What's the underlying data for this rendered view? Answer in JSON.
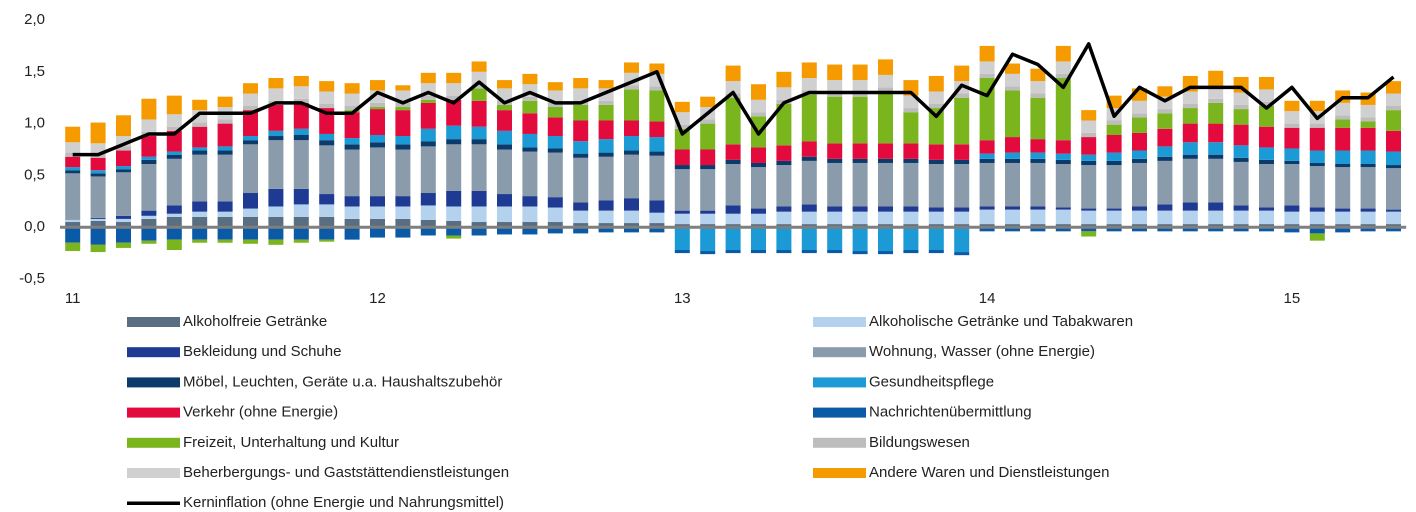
{
  "chart_data": {
    "type": "stacked_bar_line",
    "categories": [
      "11",
      null,
      null,
      null,
      null,
      null,
      null,
      null,
      null,
      null,
      null,
      null,
      "12",
      null,
      null,
      null,
      null,
      null,
      null,
      null,
      null,
      null,
      null,
      null,
      "13",
      null,
      null,
      null,
      null,
      null,
      null,
      null,
      null,
      null,
      null,
      null,
      "14",
      null,
      null,
      null,
      null,
      null,
      null,
      null,
      null,
      null,
      null,
      null,
      "15",
      null,
      null,
      null,
      null
    ],
    "ylim": [
      -0.5,
      2.0
    ],
    "yticks": [
      {
        "value": -0.5,
        "label": "-0,5"
      },
      {
        "value": 0,
        "label": "0,0"
      },
      {
        "value": 0.5,
        "label": "0,5"
      },
      {
        "value": 1.0,
        "label": "1,0"
      },
      {
        "value": 1.5,
        "label": "1,5"
      },
      {
        "value": 2.0,
        "label": "2,0"
      }
    ],
    "series": [
      {
        "name": "Alkoholfreie Getränke",
        "color": "#5a6e82",
        "values": [
          0.05,
          0.06,
          0.05,
          0.08,
          0.1,
          0.1,
          0.1,
          0.1,
          0.1,
          0.1,
          0.1,
          0.08,
          0.08,
          0.08,
          0.07,
          0.06,
          0.05,
          0.05,
          0.05,
          0.05,
          0.04,
          0.04,
          0.04,
          0.04,
          0.03,
          0.03,
          0.03,
          0.03,
          0.03,
          0.03,
          0.03,
          0.03,
          0.03,
          0.03,
          0.03,
          0.03,
          0.03,
          0.03,
          0.03,
          0.03,
          0.03,
          0.03,
          0.03,
          0.03,
          0.03,
          0.03,
          0.03,
          0.03,
          0.03,
          0.03,
          0.03,
          0.03,
          0.03
        ]
      },
      {
        "name": "Alkoholische Getränke und Tabakwaren",
        "color": "#b4d2ee",
        "values": [
          0.02,
          0.02,
          0.03,
          0.03,
          0.03,
          0.05,
          0.05,
          0.08,
          0.1,
          0.12,
          0.12,
          0.12,
          0.12,
          0.12,
          0.14,
          0.14,
          0.15,
          0.15,
          0.15,
          0.14,
          0.12,
          0.12,
          0.12,
          0.1,
          0.1,
          0.1,
          0.1,
          0.1,
          0.12,
          0.12,
          0.12,
          0.12,
          0.12,
          0.12,
          0.12,
          0.12,
          0.14,
          0.14,
          0.14,
          0.14,
          0.13,
          0.13,
          0.13,
          0.13,
          0.13,
          0.13,
          0.13,
          0.13,
          0.12,
          0.12,
          0.12,
          0.12,
          0.12
        ]
      },
      {
        "name": "Bekleidung und Schuhe",
        "color": "#1f3a93",
        "values": [
          0.0,
          0.01,
          0.03,
          0.05,
          0.08,
          0.1,
          0.1,
          0.15,
          0.17,
          0.15,
          0.1,
          0.1,
          0.1,
          0.1,
          0.12,
          0.15,
          0.15,
          0.12,
          0.1,
          0.1,
          0.08,
          0.1,
          0.12,
          0.12,
          0.03,
          0.03,
          0.08,
          0.05,
          0.05,
          0.07,
          0.05,
          0.05,
          0.05,
          0.05,
          0.04,
          0.04,
          0.03,
          0.03,
          0.03,
          0.02,
          0.02,
          0.02,
          0.04,
          0.06,
          0.08,
          0.08,
          0.05,
          0.03,
          0.06,
          0.04,
          0.03,
          0.03,
          0.02
        ]
      },
      {
        "name": "Wohnung, Wasser (ohne Energie)",
        "color": "#8a9bab",
        "values": [
          0.45,
          0.4,
          0.42,
          0.45,
          0.45,
          0.45,
          0.45,
          0.47,
          0.47,
          0.47,
          0.47,
          0.45,
          0.47,
          0.45,
          0.45,
          0.45,
          0.45,
          0.43,
          0.43,
          0.43,
          0.43,
          0.42,
          0.42,
          0.43,
          0.4,
          0.4,
          0.4,
          0.4,
          0.4,
          0.42,
          0.42,
          0.42,
          0.42,
          0.42,
          0.42,
          0.42,
          0.42,
          0.42,
          0.42,
          0.42,
          0.42,
          0.42,
          0.42,
          0.42,
          0.42,
          0.42,
          0.42,
          0.42,
          0.4,
          0.4,
          0.4,
          0.4,
          0.4
        ]
      },
      {
        "name": "Möbel, Leuchten, Geräte u.a. Haushaltszubehör",
        "color": "#0b3a6b",
        "values": [
          0.03,
          0.03,
          0.03,
          0.04,
          0.04,
          0.04,
          0.04,
          0.04,
          0.04,
          0.05,
          0.05,
          0.05,
          0.05,
          0.05,
          0.05,
          0.05,
          0.05,
          0.05,
          0.04,
          0.04,
          0.04,
          0.04,
          0.04,
          0.04,
          0.04,
          0.04,
          0.04,
          0.04,
          0.04,
          0.04,
          0.04,
          0.04,
          0.04,
          0.04,
          0.04,
          0.04,
          0.04,
          0.04,
          0.04,
          0.04,
          0.04,
          0.04,
          0.04,
          0.04,
          0.04,
          0.04,
          0.04,
          0.04,
          0.03,
          0.03,
          0.03,
          0.03,
          0.03
        ]
      },
      {
        "name": "Gesundheitspflege",
        "color": "#1b9ad6",
        "values": [
          0.03,
          0.03,
          0.03,
          0.03,
          0.03,
          0.03,
          0.04,
          0.04,
          0.05,
          0.06,
          0.06,
          0.06,
          0.07,
          0.08,
          0.12,
          0.13,
          0.12,
          0.13,
          0.13,
          0.12,
          0.12,
          0.13,
          0.14,
          0.14,
          -0.22,
          -0.23,
          -0.22,
          -0.22,
          -0.22,
          -0.22,
          -0.22,
          -0.23,
          -0.23,
          -0.22,
          -0.22,
          -0.24,
          0.05,
          0.06,
          0.06,
          0.06,
          0.06,
          0.08,
          0.08,
          0.1,
          0.12,
          0.12,
          0.12,
          0.12,
          0.12,
          0.12,
          0.13,
          0.13,
          0.13
        ]
      },
      {
        "name": "Verkehr (ohne Energie)",
        "color": "#e30b3d",
        "values": [
          0.1,
          0.12,
          0.15,
          0.2,
          0.2,
          0.2,
          0.22,
          0.25,
          0.25,
          0.25,
          0.25,
          0.25,
          0.25,
          0.25,
          0.25,
          0.25,
          0.25,
          0.2,
          0.2,
          0.18,
          0.2,
          0.18,
          0.15,
          0.15,
          0.15,
          0.15,
          0.15,
          0.15,
          0.15,
          0.15,
          0.15,
          0.15,
          0.15,
          0.15,
          0.15,
          0.15,
          0.13,
          0.15,
          0.13,
          0.13,
          0.17,
          0.17,
          0.17,
          0.17,
          0.18,
          0.18,
          0.2,
          0.2,
          0.2,
          0.22,
          0.22,
          0.22,
          0.2
        ]
      },
      {
        "name": "Nachrichtenübermittlung",
        "color": "#0b5aa8",
        "values": [
          -0.15,
          -0.17,
          -0.15,
          -0.13,
          -0.12,
          -0.12,
          -0.12,
          -0.12,
          -0.12,
          -0.12,
          -0.12,
          -0.12,
          -0.1,
          -0.1,
          -0.08,
          -0.08,
          -0.08,
          -0.07,
          -0.07,
          -0.06,
          -0.06,
          -0.05,
          -0.05,
          -0.05,
          -0.03,
          -0.03,
          -0.03,
          -0.03,
          -0.03,
          -0.03,
          -0.03,
          -0.03,
          -0.03,
          -0.03,
          -0.03,
          -0.03,
          -0.04,
          -0.04,
          -0.04,
          -0.04,
          -0.04,
          -0.04,
          -0.04,
          -0.04,
          -0.04,
          -0.04,
          -0.04,
          -0.04,
          -0.05,
          -0.06,
          -0.05,
          -0.04,
          -0.04
        ]
      },
      {
        "name": "Freizeit, Unterhaltung und Kultur",
        "color": "#7ab51d",
        "values": [
          -0.08,
          -0.07,
          -0.05,
          -0.03,
          -0.1,
          -0.03,
          -0.03,
          -0.04,
          -0.05,
          -0.03,
          -0.02,
          0.02,
          0.02,
          0.03,
          0.03,
          -0.03,
          0.12,
          0.05,
          0.12,
          0.1,
          0.15,
          0.15,
          0.3,
          0.3,
          0.2,
          0.25,
          0.45,
          0.3,
          0.4,
          0.45,
          0.45,
          0.45,
          0.5,
          0.3,
          0.35,
          0.45,
          0.6,
          0.45,
          0.4,
          0.6,
          -0.05,
          0.1,
          0.15,
          0.15,
          0.15,
          0.2,
          0.15,
          0.2,
          0.0,
          -0.07,
          0.08,
          0.06,
          0.2
        ]
      },
      {
        "name": "Bildungswesen",
        "color": "#bdbdbd",
        "values": [
          0.04,
          0.04,
          0.04,
          0.04,
          0.04,
          0.04,
          0.04,
          0.04,
          0.04,
          0.04,
          0.04,
          0.04,
          0.04,
          0.04,
          0.04,
          0.04,
          0.04,
          0.04,
          0.04,
          0.04,
          0.04,
          0.04,
          0.04,
          0.04,
          0.04,
          0.04,
          0.04,
          0.04,
          0.04,
          0.04,
          0.04,
          0.04,
          0.04,
          0.04,
          0.04,
          0.04,
          0.04,
          0.04,
          0.04,
          0.04,
          0.04,
          0.04,
          0.04,
          0.04,
          0.04,
          0.04,
          0.04,
          0.04,
          0.04,
          0.04,
          0.04,
          0.04,
          0.04
        ]
      },
      {
        "name": "Beherbergungs- und Gaststättendienstleistungen",
        "color": "#d0d0d0",
        "values": [
          0.1,
          0.1,
          0.1,
          0.12,
          0.12,
          0.12,
          0.12,
          0.12,
          0.12,
          0.12,
          0.12,
          0.12,
          0.12,
          0.12,
          0.12,
          0.12,
          0.12,
          0.12,
          0.12,
          0.12,
          0.12,
          0.12,
          0.12,
          0.12,
          0.12,
          0.12,
          0.12,
          0.12,
          0.12,
          0.12,
          0.12,
          0.12,
          0.12,
          0.12,
          0.12,
          0.12,
          0.12,
          0.12,
          0.12,
          0.12,
          0.12,
          0.12,
          0.12,
          0.12,
          0.12,
          0.12,
          0.12,
          0.12,
          0.12,
          0.12,
          0.12,
          0.12,
          0.12
        ]
      },
      {
        "name": "Andere Waren und Dienstleistungen",
        "color": "#f59b00",
        "values": [
          0.15,
          0.2,
          0.2,
          0.2,
          0.18,
          0.1,
          0.1,
          0.1,
          0.1,
          0.1,
          0.1,
          0.1,
          0.1,
          0.05,
          0.1,
          0.1,
          0.1,
          0.08,
          0.1,
          0.08,
          0.1,
          0.08,
          0.1,
          0.1,
          0.1,
          0.1,
          0.15,
          0.15,
          0.15,
          0.15,
          0.15,
          0.15,
          0.15,
          0.15,
          0.15,
          0.15,
          0.15,
          0.1,
          0.12,
          0.15,
          0.1,
          0.12,
          0.12,
          0.1,
          0.15,
          0.15,
          0.15,
          0.12,
          0.1,
          0.1,
          0.12,
          0.12,
          0.12
        ]
      },
      {
        "name": "Kerninflation (ohne Energie und Nahrungsmittel)",
        "color": "#000000",
        "type": "line",
        "values": [
          0.7,
          0.7,
          0.8,
          0.9,
          0.9,
          1.1,
          1.1,
          1.1,
          1.2,
          1.2,
          1.1,
          1.1,
          1.3,
          1.2,
          1.3,
          1.2,
          1.4,
          1.2,
          1.3,
          1.2,
          1.2,
          1.3,
          1.4,
          1.5,
          0.9,
          1.1,
          1.3,
          0.9,
          1.2,
          1.3,
          1.3,
          1.3,
          1.3,
          1.3,
          1.07,
          1.37,
          1.27,
          1.67,
          1.57,
          1.35,
          1.77,
          1.07,
          1.35,
          1.22,
          1.35,
          1.35,
          1.35,
          1.15,
          1.35,
          1.05,
          1.25,
          1.25,
          1.45
        ]
      }
    ]
  }
}
